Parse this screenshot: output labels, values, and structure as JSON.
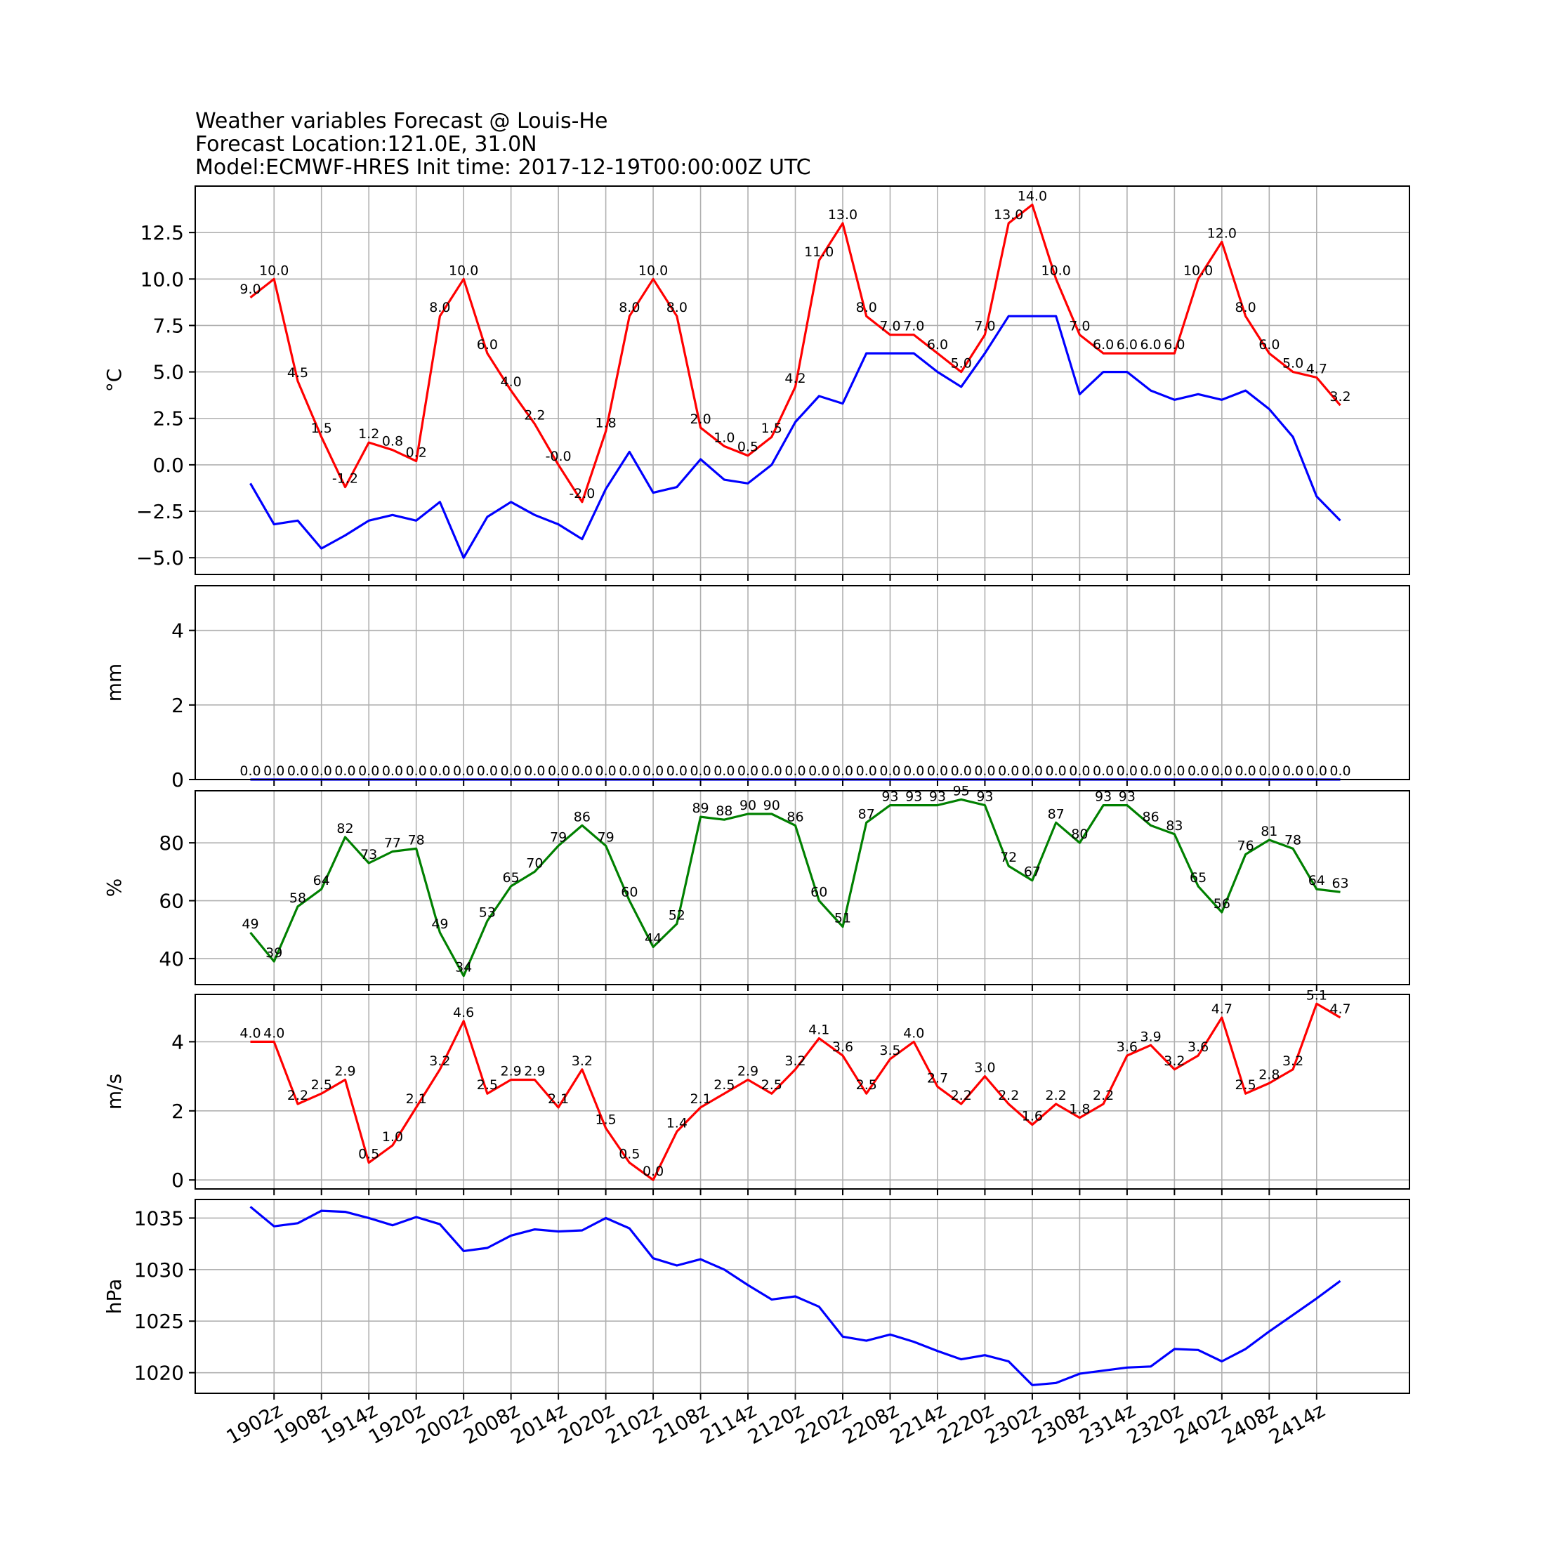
{
  "title": {
    "line1": "Weather variables Forecast @ Louis-He",
    "line2": "Forecast Location:121.0E, 31.0N",
    "line3": "Model:ECMWF-HRES Init time: 2017-12-19T00:00:00Z UTC"
  },
  "chart_data": [
    {
      "type": "line",
      "ylabel": "°C",
      "ylim": [
        -5.9,
        15.0
      ],
      "yticks": [
        -5.0,
        -2.5,
        0.0,
        2.5,
        5.0,
        7.5,
        10.0,
        12.5
      ],
      "ytick_labels": [
        "−5.0",
        "−2.5",
        "0.0",
        "2.5",
        "5.0",
        "7.5",
        "10.0",
        "12.5"
      ],
      "grid": true,
      "series": [
        {
          "color": "#ff0000",
          "labeled": true,
          "values": [
            9.0,
            10.0,
            4.5,
            1.5,
            -1.2,
            1.2,
            0.8,
            0.2,
            8.0,
            10.0,
            6.0,
            4.0,
            2.2,
            -0.0,
            -2.0,
            1.8,
            8.0,
            10.0,
            8.0,
            2.0,
            1.0,
            0.5,
            1.5,
            4.2,
            11.0,
            13.0,
            8.0,
            7.0,
            7.0,
            6.0,
            5.0,
            7.0,
            13.0,
            14.0,
            10.0,
            7.0,
            6.0,
            6.0,
            6.0,
            6.0,
            10.0,
            12.0,
            8.0,
            6.0,
            5.0,
            4.7,
            3.2
          ],
          "labels": [
            "9.0",
            "10.0",
            "4.5",
            "1.5",
            "-1.2",
            "1.2",
            "0.8",
            "0.2",
            "8.0",
            "10.0",
            "6.0",
            "4.0",
            "2.2",
            "-0.0",
            "-2.0",
            "1.8",
            "8.0",
            "10.0",
            "8.0",
            "2.0",
            "1.0",
            "0.5",
            "1.5",
            "4.2",
            "11.0",
            "13.0",
            "8.0",
            "7.0",
            "7.0",
            "6.0",
            "5.0",
            "7.0",
            "13.0",
            "14.0",
            "10.0",
            "7.0",
            "6.0",
            "6.0",
            "6.0",
            "6.0",
            "10.0",
            "12.0",
            "8.0",
            "6.0",
            "5.0",
            "4.7",
            "3.2"
          ]
        },
        {
          "color": "#0000ff",
          "labeled": false,
          "values": [
            -1.0,
            -3.2,
            -3.0,
            -4.5,
            -3.8,
            -3.0,
            -2.7,
            -3.0,
            -2.0,
            -5.0,
            -2.8,
            -2.0,
            -2.7,
            -3.2,
            -4.0,
            -1.3,
            0.7,
            -1.5,
            -1.2,
            0.3,
            -0.8,
            -1.0,
            0.0,
            2.3,
            3.7,
            3.3,
            6.0,
            6.0,
            6.0,
            5.0,
            4.2,
            6.0,
            8.0,
            8.0,
            8.0,
            3.8,
            5.0,
            5.0,
            4.0,
            3.5,
            3.8,
            3.5,
            4.0,
            3.0,
            1.5,
            -1.7,
            -3.0
          ]
        }
      ]
    },
    {
      "type": "line",
      "ylabel": "mm",
      "ylim": [
        0,
        5.2
      ],
      "yticks": [
        0,
        2,
        4
      ],
      "ytick_labels": [
        "0",
        "2",
        "4"
      ],
      "grid": true,
      "series": [
        {
          "color": "#0000ff",
          "labeled": true,
          "values": [
            0.0,
            0.0,
            0.0,
            0.0,
            0.0,
            0.0,
            0.0,
            0.0,
            0.0,
            0.0,
            0.0,
            0.0,
            0.0,
            0.0,
            0.0,
            0.0,
            0.0,
            0.0,
            0.0,
            0.0,
            0.0,
            0.0,
            0.0,
            0.0,
            0.0,
            0.0,
            0.0,
            0.0,
            0.0,
            0.0,
            0.0,
            0.0,
            0.0,
            0.0,
            0.0,
            0.0,
            0.0,
            0.0,
            0.0,
            0.0,
            0.0,
            0.0,
            0.0,
            0.0,
            0.0,
            0.0,
            0.0
          ],
          "labels": [
            "0.0",
            "0.0",
            "0.0",
            "0.0",
            "0.0",
            "0.0",
            "0.0",
            "0.0",
            "0.0",
            "0.0",
            "0.0",
            "0.0",
            "0.0",
            "0.0",
            "0.0",
            "0.0",
            "0.0",
            "0.0",
            "0.0",
            "0.0",
            "0.0",
            "0.0",
            "0.0",
            "0.0",
            "0.0",
            "0.0",
            "0.0",
            "0.0",
            "0.0",
            "0.0",
            "0.0",
            "0.0",
            "0.0",
            "0.0",
            "0.0",
            "0.0",
            "0.0",
            "0.0",
            "0.0",
            "0.0",
            "0.0",
            "0.0",
            "0.0",
            "0.0",
            "0.0",
            "0.0",
            "0.0"
          ]
        }
      ]
    },
    {
      "type": "line",
      "ylabel": "%",
      "ylim": [
        31,
        98
      ],
      "yticks": [
        40,
        60,
        80
      ],
      "ytick_labels": [
        "40",
        "60",
        "80"
      ],
      "grid": true,
      "series": [
        {
          "color": "#008000",
          "labeled": true,
          "values": [
            49,
            39,
            58,
            64,
            82,
            73,
            77,
            78,
            49,
            34,
            53,
            65,
            70,
            79,
            86,
            79,
            60,
            44,
            52,
            89,
            88,
            90,
            90,
            86,
            60,
            51,
            87,
            93,
            93,
            93,
            95,
            93,
            72,
            67,
            87,
            80,
            93,
            93,
            86,
            83,
            65,
            56,
            76,
            81,
            78,
            64,
            63
          ],
          "labels": [
            "49",
            "39",
            "58",
            "64",
            "82",
            "73",
            "77",
            "78",
            "49",
            "34",
            "53",
            "65",
            "70",
            "79",
            "86",
            "79",
            "60",
            "44",
            "52",
            "89",
            "88",
            "90",
            "90",
            "86",
            "60",
            "51",
            "87",
            "93",
            "93",
            "93",
            "95",
            "93",
            "72",
            "67",
            "87",
            "80",
            "93",
            "93",
            "86",
            "83",
            "65",
            "56",
            "76",
            "81",
            "78",
            "64",
            "63"
          ]
        }
      ]
    },
    {
      "type": "line",
      "ylabel": "m/s",
      "ylim": [
        -0.26,
        5.37
      ],
      "yticks": [
        0,
        2,
        4
      ],
      "ytick_labels": [
        "0",
        "2",
        "4"
      ],
      "grid": true,
      "series": [
        {
          "color": "#ff0000",
          "labeled": true,
          "values": [
            4.0,
            4.0,
            2.2,
            2.5,
            2.9,
            0.5,
            1.0,
            2.1,
            3.2,
            4.6,
            2.5,
            2.9,
            2.9,
            2.1,
            3.2,
            1.5,
            0.5,
            0.0,
            1.4,
            2.1,
            2.5,
            2.9,
            2.5,
            3.2,
            4.1,
            3.6,
            2.5,
            3.5,
            4.0,
            2.7,
            2.2,
            3.0,
            2.2,
            1.6,
            2.2,
            1.8,
            2.2,
            3.6,
            3.9,
            3.2,
            3.6,
            4.7,
            2.5,
            2.8,
            3.2,
            5.1,
            4.7
          ],
          "labels": [
            "4.0",
            "4.0",
            "2.2",
            "2.5",
            "2.9",
            "0.5",
            "1.0",
            "2.1",
            "3.2",
            "4.6",
            "2.5",
            "2.9",
            "2.9",
            "2.1",
            "3.2",
            "1.5",
            "0.5",
            "0.0",
            "1.4",
            "2.1",
            "2.5",
            "2.9",
            "2.5",
            "3.2",
            "4.1",
            "3.6",
            "2.5",
            "3.5",
            "4.0",
            "2.7",
            "2.2",
            "3.0",
            "2.2",
            "1.6",
            "2.2",
            "1.8",
            "2.2",
            "3.6",
            "3.9",
            "3.2",
            "3.6",
            "4.7",
            "2.5",
            "2.8",
            "3.2",
            "5.1",
            "4.7"
          ]
        }
      ]
    },
    {
      "type": "line",
      "ylabel": "hPa",
      "ylim": [
        1018.0,
        1036.8
      ],
      "yticks": [
        1020,
        1025,
        1030,
        1035
      ],
      "ytick_labels": [
        "1020",
        "1025",
        "1030",
        "1035"
      ],
      "grid": true,
      "series": [
        {
          "color": "#0000ff",
          "labeled": false,
          "values": [
            1036.1,
            1034.2,
            1034.5,
            1035.7,
            1035.6,
            1035.0,
            1034.3,
            1035.1,
            1034.4,
            1031.8,
            1032.1,
            1033.3,
            1033.9,
            1033.7,
            1033.8,
            1035.0,
            1034.0,
            1031.1,
            1030.4,
            1031.0,
            1030.0,
            1028.5,
            1027.1,
            1027.4,
            1026.4,
            1023.5,
            1023.1,
            1023.7,
            1023.0,
            1022.1,
            1021.3,
            1021.7,
            1021.1,
            1018.8,
            1019.0,
            1019.9,
            1020.2,
            1020.5,
            1020.6,
            1022.3,
            1022.2,
            1021.1,
            1022.3,
            1024.0,
            1025.6,
            1027.2,
            1028.9
          ]
        }
      ]
    }
  ],
  "x_axis": {
    "tick_indices": [
      1,
      3,
      5,
      7,
      9,
      11,
      13,
      15,
      17,
      19,
      21,
      23,
      25,
      27,
      29,
      31,
      33,
      35,
      37,
      39,
      41,
      43,
      45
    ],
    "tick_labels": [
      "1902z",
      "1908z",
      "1914z",
      "1920z",
      "2002z",
      "2008z",
      "2014z",
      "2020z",
      "2102z",
      "2108z",
      "2114z",
      "2120z",
      "2202z",
      "2208z",
      "2214z",
      "2220z",
      "2302z",
      "2308z",
      "2314z",
      "2320z",
      "2402z",
      "2408z",
      "2414z"
    ]
  }
}
